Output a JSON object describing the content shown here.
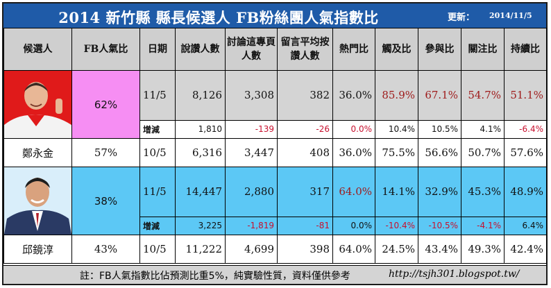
{
  "header": {
    "title": "2014 新竹縣 縣長候選人 FB粉絲團人氣指數比",
    "updated_label": "更新：",
    "updated_date": "2014/11/5"
  },
  "columns": [
    "候選人",
    "FB人氣比",
    "日期",
    "說讚人數",
    "討論這專頁人數",
    "留言平均按讚人數",
    "熱門比",
    "觸及比",
    "參與比",
    "關注比",
    "持續比"
  ],
  "colors": {
    "title_bg": "#1f5ba8",
    "pink": "#f68ef3",
    "blue": "#5cc8f5",
    "gray": "#d4d4d4",
    "red": "#c8102e",
    "dark_red": "#9e1a1a"
  },
  "candidates": [
    {
      "name": "鄭永金",
      "photo_icon": "candidate-photo-1",
      "fb_ratio_current": "62%",
      "fb_ratio_prev": "57%",
      "current": {
        "date": "11/5",
        "likes": "8,126",
        "talking": "3,308",
        "comment_likes": "382",
        "hot": "36.0%",
        "reach": "85.9%",
        "engage": "67.1%",
        "attention": "54.7%",
        "retention": "51.1%"
      },
      "diff": {
        "label": "增減",
        "likes": "1,810",
        "talking": "-139",
        "comment_likes": "-26",
        "hot": "0.0%",
        "reach": "10.4%",
        "engage": "10.5%",
        "attention": "4.1%",
        "retention": "-6.4%"
      },
      "prev": {
        "date": "10/5",
        "likes": "6,316",
        "talking": "3,447",
        "comment_likes": "408",
        "hot": "36.0%",
        "reach": "75.5%",
        "engage": "56.6%",
        "attention": "50.7%",
        "retention": "57.6%"
      }
    },
    {
      "name": "邱鏡淳",
      "photo_icon": "candidate-photo-2",
      "fb_ratio_current": "38%",
      "fb_ratio_prev": "43%",
      "current": {
        "date": "11/5",
        "likes": "14,447",
        "talking": "2,880",
        "comment_likes": "317",
        "hot": "64.0%",
        "reach": "14.1%",
        "engage": "32.9%",
        "attention": "45.3%",
        "retention": "48.9%"
      },
      "diff": {
        "label": "增減",
        "likes": "3,225",
        "talking": "-1,819",
        "comment_likes": "-81",
        "hot": "0.0%",
        "reach": "-10.4%",
        "engage": "-10.5%",
        "attention": "-4.1%",
        "retention": "6.4%"
      },
      "prev": {
        "date": "10/5",
        "likes": "11,222",
        "talking": "4,699",
        "comment_likes": "398",
        "hot": "64.0%",
        "reach": "24.5%",
        "engage": "43.4%",
        "attention": "49.3%",
        "retention": "42.4%"
      }
    }
  ],
  "footer": {
    "note": "註：FB人氣指數比佔預測比重5%，純實驗性質，資料僅供參考",
    "link": "http://tsjh301.blogspot.tw/"
  }
}
